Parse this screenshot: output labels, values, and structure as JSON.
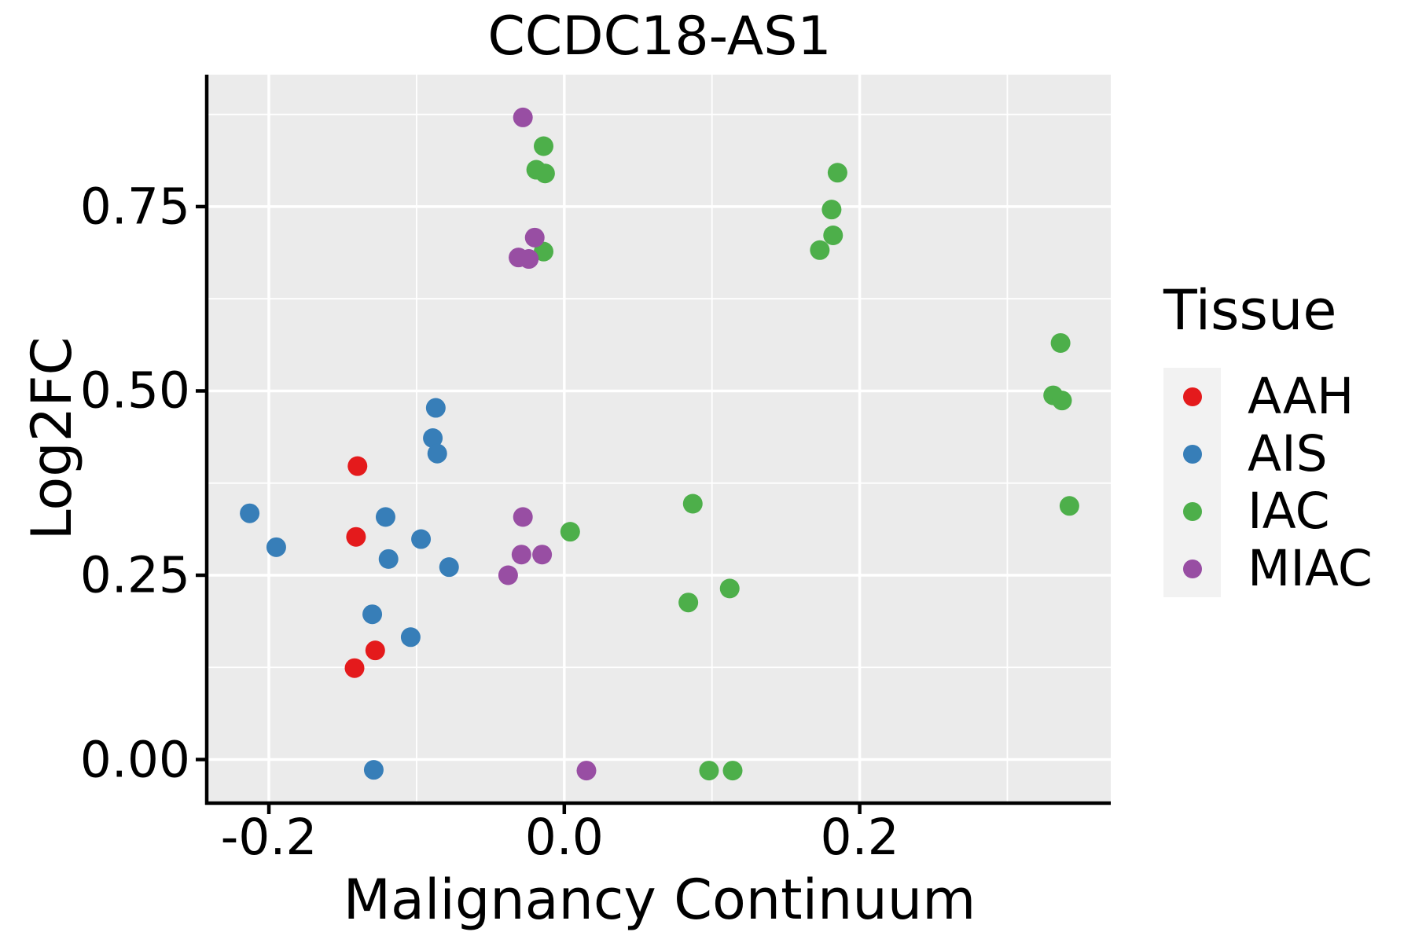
{
  "figure": {
    "title": "CCDC18-AS1"
  },
  "legend": {
    "title": "Tissue"
  },
  "chart_data": {
    "type": "scatter",
    "title": "CCDC18-AS1",
    "xlabel": "Malignancy Continuum",
    "ylabel": "Log2FC",
    "xlim": [
      -0.241,
      0.37
    ],
    "ylim": [
      -0.057,
      0.929
    ],
    "x_major_ticks": [
      -0.2,
      0.0,
      0.2
    ],
    "x_tick_labels": [
      "-0.2",
      "0.0",
      "0.2"
    ],
    "x_minor_ticks": [
      -0.1,
      0.1,
      0.3
    ],
    "y_major_ticks": [
      0.0,
      0.25,
      0.5,
      0.75
    ],
    "y_tick_labels": [
      "0.00",
      "0.25",
      "0.50",
      "0.75"
    ],
    "y_minor_ticks": [
      0.125,
      0.375,
      0.625,
      0.875
    ],
    "grid": true,
    "panel_background": "#EBEBEB",
    "gridline_color": "#FFFFFF",
    "axis_color": "#000000",
    "legend_position": "right",
    "legend_key_fill": "#F2F2F2",
    "point_radius_px": 12.5,
    "series": [
      {
        "name": "AAH",
        "color": "#E41A1C",
        "points": [
          [
            -0.14,
            0.398
          ],
          [
            -0.141,
            0.302
          ],
          [
            -0.128,
            0.148
          ],
          [
            -0.142,
            0.124
          ]
        ]
      },
      {
        "name": "AIS",
        "color": "#377EB8",
        "points": [
          [
            -0.087,
            0.477
          ],
          [
            -0.089,
            0.436
          ],
          [
            -0.086,
            0.415
          ],
          [
            -0.213,
            0.334
          ],
          [
            -0.121,
            0.329
          ],
          [
            -0.097,
            0.299
          ],
          [
            -0.195,
            0.288
          ],
          [
            -0.119,
            0.272
          ],
          [
            -0.078,
            0.261
          ],
          [
            -0.13,
            0.197
          ],
          [
            -0.104,
            0.166
          ],
          [
            -0.129,
            -0.014
          ]
        ]
      },
      {
        "name": "IAC",
        "color": "#4DAF4A",
        "points": [
          [
            -0.014,
            0.832
          ],
          [
            -0.019,
            0.8
          ],
          [
            -0.013,
            0.795
          ],
          [
            -0.014,
            0.689
          ],
          [
            0.185,
            0.796
          ],
          [
            0.181,
            0.746
          ],
          [
            0.182,
            0.711
          ],
          [
            0.173,
            0.691
          ],
          [
            0.336,
            0.565
          ],
          [
            0.331,
            0.494
          ],
          [
            0.337,
            0.487
          ],
          [
            0.342,
            0.344
          ],
          [
            0.004,
            0.309
          ],
          [
            0.087,
            0.347
          ],
          [
            0.084,
            0.213
          ],
          [
            0.112,
            0.232
          ],
          [
            0.098,
            -0.015
          ],
          [
            0.114,
            -0.015
          ]
        ]
      },
      {
        "name": "MIAC",
        "color": "#984EA3",
        "points": [
          [
            -0.028,
            0.871
          ],
          [
            -0.02,
            0.708
          ],
          [
            -0.031,
            0.681
          ],
          [
            -0.024,
            0.679
          ],
          [
            -0.028,
            0.329
          ],
          [
            -0.029,
            0.278
          ],
          [
            -0.015,
            0.278
          ],
          [
            -0.038,
            0.25
          ],
          [
            0.015,
            -0.015
          ]
        ]
      }
    ]
  }
}
